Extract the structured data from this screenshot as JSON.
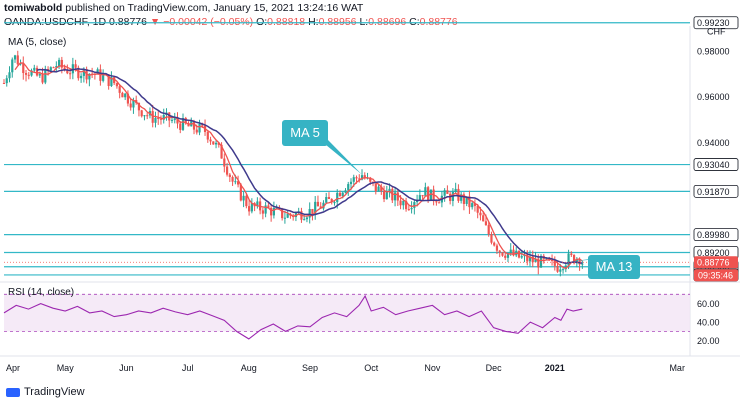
{
  "header": {
    "publisher": "tomiwabold",
    "published_text": "published on TradingView.com, January 15, 2021 13:24:16 WAT",
    "symbol": "OANDA:USDCHF, 1D",
    "last": "0.88776",
    "arrow": "▼",
    "change": "−0.00042 (−0.05%)",
    "o_label": "O:",
    "o_value": "0.88818",
    "h_label": "H:",
    "h_value": "0.88956",
    "l_label": "L:",
    "l_value": "0.88696",
    "c_label": "C:",
    "c_value": "0.88776"
  },
  "ma_legend": "MA (5, close)",
  "rsi_legend": "RSI (14, close)",
  "footer": {
    "brand": "TradingView"
  },
  "colors": {
    "up": "#26a69a",
    "down": "#ef5350",
    "ma5": "#ef5350",
    "ma13": "#3f3a8c",
    "level": "#33b8c7",
    "rsi": "#9c27b0",
    "callout": "#36b3c4",
    "price_tag": "#ef5350"
  },
  "chart_data": [
    {
      "type": "candlestick",
      "symbol": "OANDA:USDCHF",
      "timeframe": "1D",
      "y_range": [
        0.88,
        0.99
      ],
      "y_tick_labels": [
        "0.98000",
        "0.96000",
        "0.94000"
      ],
      "x_tick_labels": [
        "Apr",
        "May",
        "Jun",
        "Jul",
        "Aug",
        "Sep",
        "Oct",
        "Nov",
        "Dec",
        "2021",
        "Mar"
      ],
      "x_tick_positions": [
        0.0,
        1.0,
        2.0,
        3.0,
        4.0,
        5.0,
        6.0,
        7.0,
        8.0,
        9.0,
        11.0
      ],
      "price_path": [
        [
          0.0,
          0.966
        ],
        [
          0.15,
          0.978
        ],
        [
          0.35,
          0.972
        ],
        [
          0.6,
          0.968
        ],
        [
          0.85,
          0.974
        ],
        [
          1.0,
          0.972
        ],
        [
          1.2,
          0.971
        ],
        [
          1.5,
          0.97
        ],
        [
          1.8,
          0.966
        ],
        [
          2.0,
          0.96
        ],
        [
          2.2,
          0.955
        ],
        [
          2.4,
          0.951
        ],
        [
          2.7,
          0.95
        ],
        [
          3.0,
          0.947
        ],
        [
          3.3,
          0.945
        ],
        [
          3.55,
          0.935
        ],
        [
          3.75,
          0.922
        ],
        [
          4.0,
          0.912
        ],
        [
          4.3,
          0.911
        ],
        [
          4.6,
          0.908
        ],
        [
          5.0,
          0.91
        ],
        [
          5.3,
          0.914
        ],
        [
          5.6,
          0.922
        ],
        [
          5.85,
          0.926
        ],
        [
          6.0,
          0.921
        ],
        [
          6.3,
          0.917
        ],
        [
          6.6,
          0.913
        ],
        [
          6.85,
          0.919
        ],
        [
          7.0,
          0.916
        ],
        [
          7.4,
          0.917
        ],
        [
          7.7,
          0.911
        ],
        [
          7.9,
          0.901
        ],
        [
          8.1,
          0.893
        ],
        [
          8.4,
          0.89
        ],
        [
          8.7,
          0.888
        ],
        [
          8.9,
          0.887
        ],
        [
          9.05,
          0.886
        ],
        [
          9.2,
          0.889
        ],
        [
          9.4,
          0.89
        ],
        [
          9.45,
          0.888
        ]
      ],
      "horizontal_levels": [
        0.9923,
        0.9304,
        0.9187,
        0.8998,
        0.892,
        0.8858,
        0.8822
      ],
      "level_labels": [
        "0.99230",
        "0.93040",
        "0.91870",
        "0.89980",
        "0.89200",
        "0.88580",
        "0.88220"
      ],
      "axis_currency": "CHF",
      "last_price_label": "0.88776",
      "countdown_label": "09:35:46",
      "annotations": [
        {
          "text": "MA 5",
          "target": [
            5.85,
            0.926
          ]
        },
        {
          "text": "MA 13",
          "target": [
            9.25,
            0.888
          ]
        }
      ]
    },
    {
      "type": "line",
      "name": "RSI (14, close)",
      "y_range": [
        10,
        80
      ],
      "y_tick_labels": [
        "60.00",
        "40.00",
        "20.00"
      ],
      "bands": [
        30,
        70
      ],
      "x": [
        0.0,
        0.2,
        0.4,
        0.6,
        0.8,
        1.0,
        1.2,
        1.4,
        1.6,
        1.8,
        2.0,
        2.2,
        2.4,
        2.6,
        2.8,
        3.0,
        3.2,
        3.4,
        3.6,
        3.8,
        4.0,
        4.2,
        4.4,
        4.6,
        4.8,
        5.0,
        5.2,
        5.4,
        5.6,
        5.8,
        5.9,
        6.0,
        6.2,
        6.4,
        6.6,
        6.8,
        7.0,
        7.2,
        7.4,
        7.6,
        7.8,
        8.0,
        8.2,
        8.4,
        8.6,
        8.8,
        9.0,
        9.1,
        9.2,
        9.3,
        9.45
      ],
      "values": [
        50,
        58,
        54,
        60,
        55,
        52,
        57,
        50,
        52,
        46,
        48,
        52,
        50,
        55,
        51,
        48,
        52,
        47,
        42,
        30,
        22,
        32,
        38,
        30,
        36,
        35,
        45,
        50,
        46,
        58,
        68,
        52,
        56,
        48,
        52,
        55,
        58,
        48,
        52,
        46,
        52,
        34,
        30,
        28,
        40,
        34,
        45,
        42,
        54,
        52,
        54
      ]
    }
  ]
}
